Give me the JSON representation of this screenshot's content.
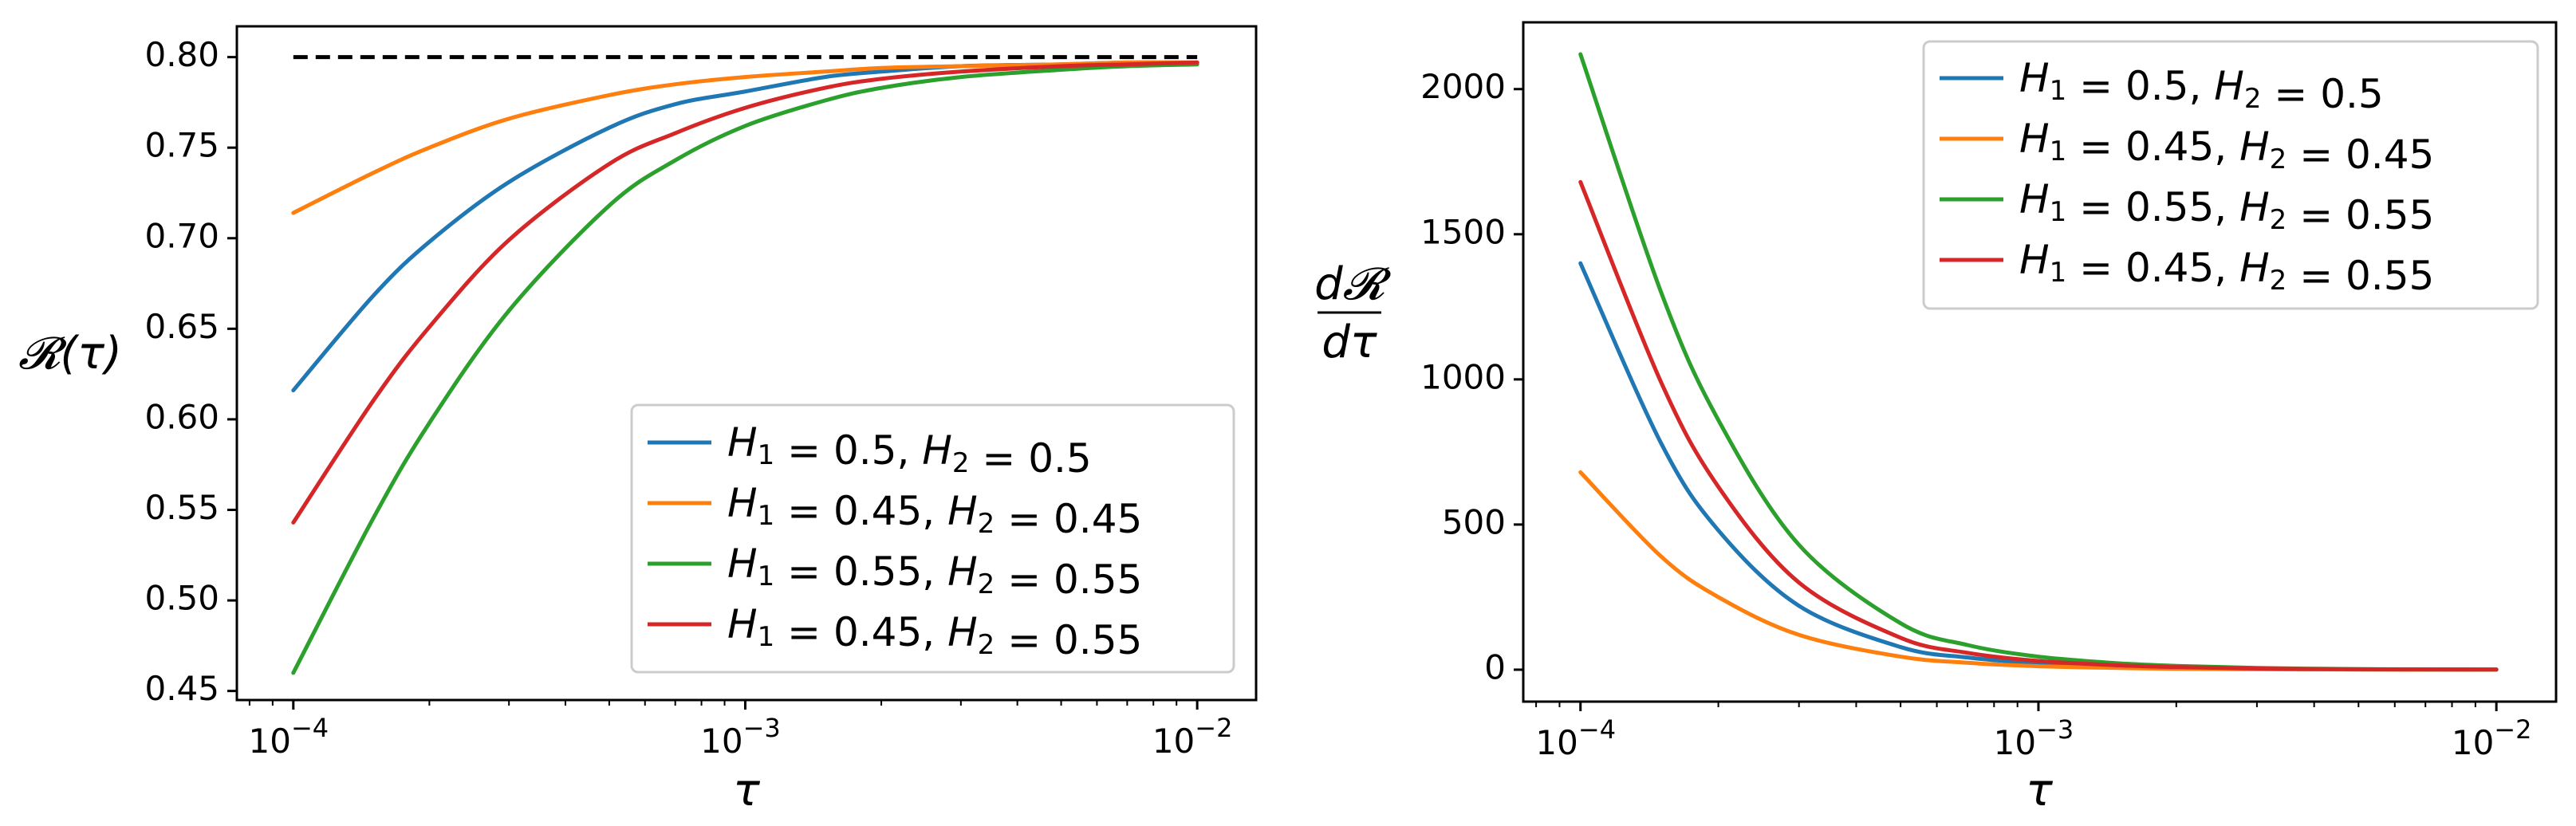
{
  "colors": {
    "blue": "#1f77b4",
    "orange": "#ff7f0e",
    "green": "#2ca02c",
    "red": "#d62728",
    "reference": "#000000"
  },
  "chart_data": [
    {
      "type": "line",
      "title": "",
      "xlabel": "τ",
      "ylabel": "𝓡(τ)",
      "xscale": "log",
      "xlim": [
        7.5e-05,
        0.0135
      ],
      "ylim": [
        0.445,
        0.817
      ],
      "xticks": [
        {
          "value": 0.0001,
          "base": "10",
          "exp": "−4"
        },
        {
          "value": 0.001,
          "base": "10",
          "exp": "−3"
        },
        {
          "value": 0.01,
          "base": "10",
          "exp": "−2"
        }
      ],
      "yticks": [
        {
          "value": 0.45,
          "label": "0.45"
        },
        {
          "value": 0.5,
          "label": "0.50"
        },
        {
          "value": 0.55,
          "label": "0.55"
        },
        {
          "value": 0.6,
          "label": "0.60"
        },
        {
          "value": 0.65,
          "label": "0.65"
        },
        {
          "value": 0.7,
          "label": "0.70"
        },
        {
          "value": 0.75,
          "label": "0.75"
        },
        {
          "value": 0.8,
          "label": "0.80"
        }
      ],
      "legend_position": "lower-right",
      "x": [
        0.0001,
        0.00015,
        0.0002,
        0.0003,
        0.0005,
        0.0007,
        0.001,
        0.0015,
        0.002,
        0.003,
        0.005,
        0.007,
        0.01
      ],
      "series": [
        {
          "name": "H1 = 0.5, H2 = 0.5",
          "H1": "0.5",
          "H2": "0.5",
          "color": "#1f77b4",
          "values": [
            0.616,
            0.668,
            0.698,
            0.731,
            0.761,
            0.774,
            0.781,
            0.789,
            0.792,
            0.795,
            0.796,
            0.797,
            0.797
          ]
        },
        {
          "name": "H1 = 0.45, H2 = 0.45",
          "H1": "0.45",
          "H2": "0.45",
          "color": "#ff7f0e",
          "values": [
            0.714,
            0.736,
            0.75,
            0.766,
            0.779,
            0.785,
            0.789,
            0.792,
            0.794,
            0.795,
            0.796,
            0.797,
            0.797
          ]
        },
        {
          "name": "H1 = 0.55, H2 = 0.55",
          "H1": "0.55",
          "H2": "0.55",
          "color": "#2ca02c",
          "values": [
            0.46,
            0.545,
            0.598,
            0.66,
            0.718,
            0.743,
            0.762,
            0.776,
            0.783,
            0.789,
            0.793,
            0.795,
            0.796
          ]
        },
        {
          "name": "H1 = 0.45, H2 = 0.55",
          "H1": "0.45",
          "H2": "0.55",
          "color": "#d62728",
          "values": [
            0.543,
            0.61,
            0.651,
            0.699,
            0.741,
            0.758,
            0.772,
            0.783,
            0.788,
            0.792,
            0.795,
            0.796,
            0.797
          ]
        }
      ],
      "reference_line": {
        "y": 0.8,
        "style": "dashed",
        "x_from": 0.0001,
        "x_to": 0.01
      }
    },
    {
      "type": "line",
      "title": "",
      "xlabel": "τ",
      "ylabel_num": "d𝓡",
      "ylabel_den": "dτ",
      "xscale": "log",
      "xlim": [
        7.5e-05,
        0.0135
      ],
      "ylim": [
        -110,
        2230
      ],
      "xticks": [
        {
          "value": 0.0001,
          "base": "10",
          "exp": "−4"
        },
        {
          "value": 0.001,
          "base": "10",
          "exp": "−3"
        },
        {
          "value": 0.01,
          "base": "10",
          "exp": "−2"
        }
      ],
      "yticks": [
        {
          "value": 0,
          "label": "0"
        },
        {
          "value": 500,
          "label": "500"
        },
        {
          "value": 1000,
          "label": "1000"
        },
        {
          "value": 1500,
          "label": "1500"
        },
        {
          "value": 2000,
          "label": "2000"
        }
      ],
      "legend_position": "upper-right",
      "x": [
        0.0001,
        0.00015,
        0.0002,
        0.0003,
        0.0005,
        0.0007,
        0.001,
        0.0015,
        0.002,
        0.003,
        0.005,
        0.007,
        0.01
      ],
      "series": [
        {
          "name": "H1 = 0.5, H2 = 0.5",
          "H1": "0.5",
          "H2": "0.5",
          "color": "#1f77b4",
          "values": [
            1400,
            780,
            480,
            220,
            78,
            42,
            22,
            11,
            6,
            3,
            1,
            0.5,
            0.3
          ]
        },
        {
          "name": "H1 = 0.45, H2 = 0.45",
          "H1": "0.45",
          "H2": "0.45",
          "color": "#ff7f0e",
          "values": [
            680,
            390,
            250,
            120,
            45,
            24,
            12,
            6,
            3,
            1.5,
            0.5,
            0.3,
            0.2
          ]
        },
        {
          "name": "H1 = 0.55, H2 = 0.55",
          "H1": "0.55",
          "H2": "0.55",
          "color": "#2ca02c",
          "values": [
            2120,
            1300,
            860,
            430,
            160,
            85,
            45,
            22,
            13,
            6,
            2,
            1,
            0.5
          ]
        },
        {
          "name": "H1 = 0.45, H2 = 0.55",
          "H1": "0.45",
          "H2": "0.55",
          "color": "#d62728",
          "values": [
            1680,
            990,
            630,
            300,
            110,
            58,
            30,
            15,
            9,
            4,
            1.5,
            0.8,
            0.4
          ]
        }
      ]
    }
  ]
}
